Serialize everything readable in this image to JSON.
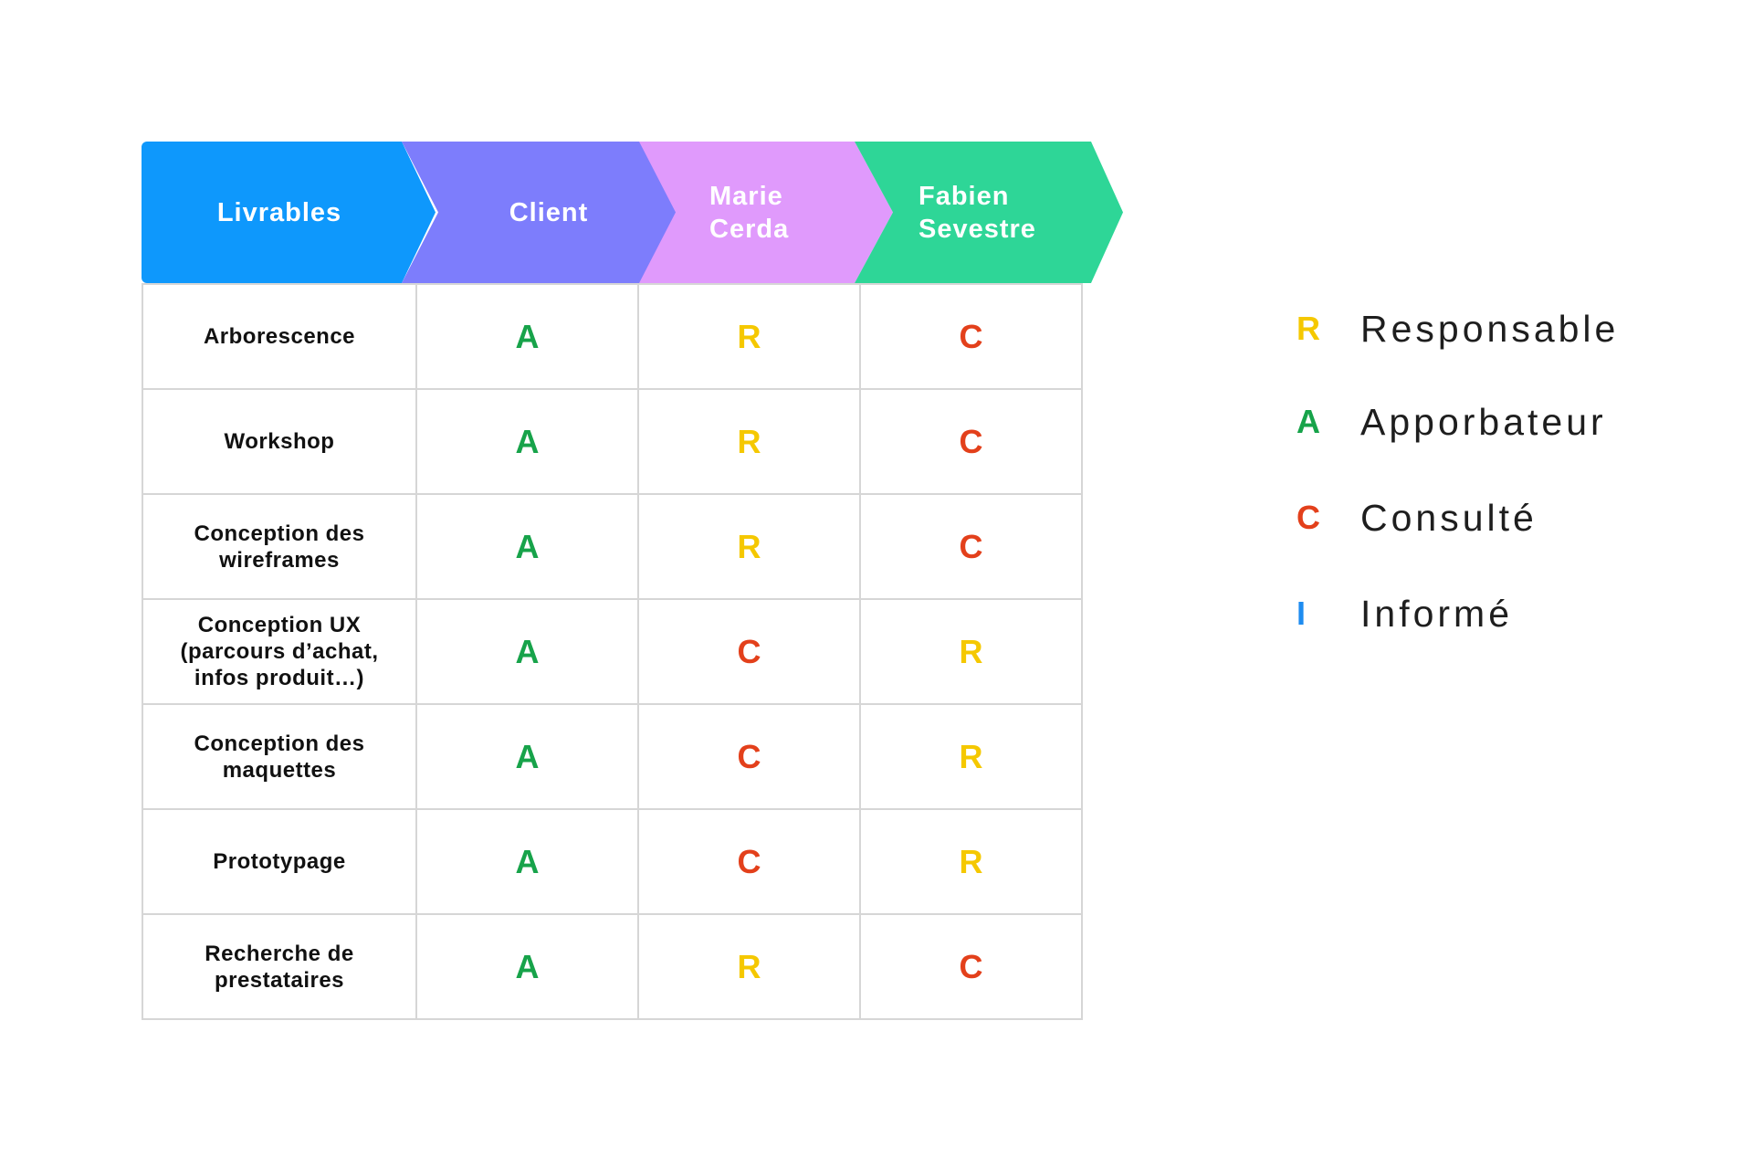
{
  "colors": {
    "R": "#f5c800",
    "A": "#17a34a",
    "C": "#e3401b",
    "I": "#1e8cf0"
  },
  "header": {
    "livrables": "Livrables",
    "client": "Client",
    "marie_line1": "Marie",
    "marie_line2": "Cerda",
    "fabien_line1": "Fabien",
    "fabien_line2": "Sevestre"
  },
  "rows": [
    {
      "line1": "Arborescence",
      "line2": "",
      "line3": "",
      "client": "A",
      "marie": "R",
      "fabien": "C"
    },
    {
      "line1": "Workshop",
      "line2": "",
      "line3": "",
      "client": "A",
      "marie": "R",
      "fabien": "C"
    },
    {
      "line1": "Conception des",
      "line2": "wireframes",
      "line3": "",
      "client": "A",
      "marie": "R",
      "fabien": "C"
    },
    {
      "line1": "Conception UX",
      "line2": "(parcours d’achat,",
      "line3": "infos produit…)",
      "client": "A",
      "marie": "C",
      "fabien": "R"
    },
    {
      "line1": "Conception des",
      "line2": "maquettes",
      "line3": "",
      "client": "A",
      "marie": "C",
      "fabien": "R"
    },
    {
      "line1": "Prototypage",
      "line2": "",
      "line3": "",
      "client": "A",
      "marie": "C",
      "fabien": "R"
    },
    {
      "line1": "Recherche de",
      "line2": "prestataires",
      "line3": "",
      "client": "A",
      "marie": "R",
      "fabien": "C"
    }
  ],
  "legend": [
    {
      "letter": "R",
      "label": "Responsable"
    },
    {
      "letter": "A",
      "label": "Apporbateur"
    },
    {
      "letter": "C",
      "label": "Consulté"
    },
    {
      "letter": "I",
      "label": "Informé"
    }
  ]
}
